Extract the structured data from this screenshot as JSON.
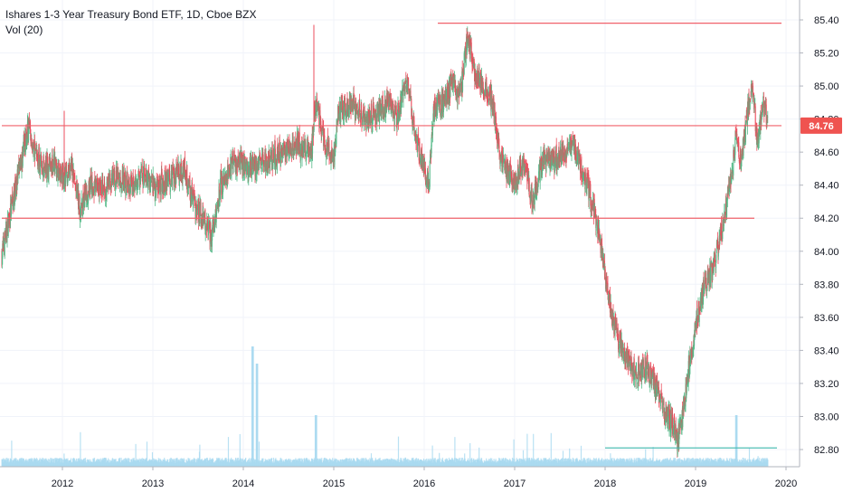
{
  "legend": {
    "title": "Ishares 1-3 Year Treasury Bond ETF, 1D, Cboe BZX",
    "volume": "Vol (20)"
  },
  "colors": {
    "up": "#53b987",
    "down": "#eb4d5c",
    "line_red": "#f0616a",
    "line_teal": "#3fb9ad",
    "volume": "#a9d9f0",
    "grid": "#f0f3fa",
    "axis_text": "#131722",
    "last_price_bg": "#ef5350"
  },
  "chart_data": {
    "type": "candlestick",
    "title": "Ishares 1-3 Year Treasury Bond ETF, 1D, Cboe BZX",
    "y_ticks": [
      "85.40",
      "85.20",
      "85.00",
      "84.80",
      "84.60",
      "84.40",
      "84.20",
      "84.00",
      "83.80",
      "83.60",
      "83.40",
      "83.20",
      "83.00",
      "82.80"
    ],
    "x_ticks": [
      "2012",
      "2013",
      "2014",
      "2015",
      "2016",
      "2017",
      "2018",
      "2019",
      "2020"
    ],
    "ylim": [
      82.65,
      85.5
    ],
    "xlim": [
      2011.33,
      2019.95
    ],
    "last_price": "84.76",
    "last_price_value": 84.76,
    "horizontal_lines": [
      {
        "value": 85.38,
        "x_from": 2016.15,
        "x_to": 2019.95,
        "color": "red"
      },
      {
        "value": 84.76,
        "x_from": 2011.33,
        "x_to": 2019.95,
        "color": "red"
      },
      {
        "value": 84.2,
        "x_from": 2011.33,
        "x_to": 2019.65,
        "color": "red"
      },
      {
        "value": 82.81,
        "x_from": 2018.0,
        "x_to": 2019.9,
        "color": "teal"
      }
    ],
    "price_path": [
      [
        2011.33,
        83.98
      ],
      [
        2011.45,
        84.3
      ],
      [
        2011.55,
        84.55
      ],
      [
        2011.62,
        84.75
      ],
      [
        2011.7,
        84.6
      ],
      [
        2011.8,
        84.5
      ],
      [
        2011.9,
        84.55
      ],
      [
        2012.0,
        84.45
      ],
      [
        2012.1,
        84.5
      ],
      [
        2012.2,
        84.25
      ],
      [
        2012.3,
        84.4
      ],
      [
        2012.45,
        84.38
      ],
      [
        2012.6,
        84.45
      ],
      [
        2012.75,
        84.4
      ],
      [
        2012.9,
        84.45
      ],
      [
        2013.05,
        84.4
      ],
      [
        2013.2,
        84.45
      ],
      [
        2013.35,
        84.5
      ],
      [
        2013.45,
        84.3
      ],
      [
        2013.55,
        84.2
      ],
      [
        2013.65,
        84.1
      ],
      [
        2013.75,
        84.4
      ],
      [
        2013.9,
        84.55
      ],
      [
        2014.1,
        84.5
      ],
      [
        2014.3,
        84.55
      ],
      [
        2014.45,
        84.6
      ],
      [
        2014.6,
        84.65
      ],
      [
        2014.75,
        84.6
      ],
      [
        2014.8,
        84.9
      ],
      [
        2014.9,
        84.65
      ],
      [
        2015.0,
        84.55
      ],
      [
        2015.05,
        84.85
      ],
      [
        2015.2,
        84.9
      ],
      [
        2015.35,
        84.8
      ],
      [
        2015.5,
        84.85
      ],
      [
        2015.6,
        84.9
      ],
      [
        2015.7,
        84.8
      ],
      [
        2015.8,
        85.05
      ],
      [
        2015.9,
        84.7
      ],
      [
        2016.0,
        84.5
      ],
      [
        2016.05,
        84.4
      ],
      [
        2016.1,
        84.85
      ],
      [
        2016.2,
        84.9
      ],
      [
        2016.3,
        85.0
      ],
      [
        2016.4,
        84.95
      ],
      [
        2016.48,
        85.3
      ],
      [
        2016.55,
        85.1
      ],
      [
        2016.65,
        85.0
      ],
      [
        2016.75,
        84.9
      ],
      [
        2016.85,
        84.55
      ],
      [
        2016.95,
        84.45
      ],
      [
        2017.0,
        84.4
      ],
      [
        2017.1,
        84.55
      ],
      [
        2017.2,
        84.3
      ],
      [
        2017.3,
        84.55
      ],
      [
        2017.45,
        84.55
      ],
      [
        2017.55,
        84.6
      ],
      [
        2017.65,
        84.65
      ],
      [
        2017.7,
        84.55
      ],
      [
        2017.8,
        84.4
      ],
      [
        2017.9,
        84.2
      ],
      [
        2017.95,
        84.05
      ],
      [
        2018.0,
        83.85
      ],
      [
        2018.08,
        83.6
      ],
      [
        2018.15,
        83.45
      ],
      [
        2018.25,
        83.35
      ],
      [
        2018.35,
        83.25
      ],
      [
        2018.45,
        83.3
      ],
      [
        2018.55,
        83.2
      ],
      [
        2018.65,
        83.05
      ],
      [
        2018.75,
        82.95
      ],
      [
        2018.8,
        82.85
      ],
      [
        2018.85,
        83.0
      ],
      [
        2018.9,
        83.2
      ],
      [
        2019.0,
        83.55
      ],
      [
        2019.1,
        83.8
      ],
      [
        2019.2,
        83.9
      ],
      [
        2019.3,
        84.15
      ],
      [
        2019.38,
        84.4
      ],
      [
        2019.45,
        84.7
      ],
      [
        2019.5,
        84.55
      ],
      [
        2019.58,
        84.85
      ],
      [
        2019.63,
        85.05
      ],
      [
        2019.68,
        84.65
      ],
      [
        2019.75,
        84.9
      ],
      [
        2019.8,
        84.76
      ]
    ],
    "spikes": [
      {
        "x": 2012.02,
        "value": 84.85
      },
      {
        "x": 2014.78,
        "value": 85.37
      }
    ],
    "volume_peaks": [
      {
        "x": 2014.1,
        "h": 0.35
      },
      {
        "x": 2014.15,
        "h": 0.3
      },
      {
        "x": 2014.8,
        "h": 0.15
      },
      {
        "x": 2019.45,
        "h": 0.15
      }
    ]
  }
}
